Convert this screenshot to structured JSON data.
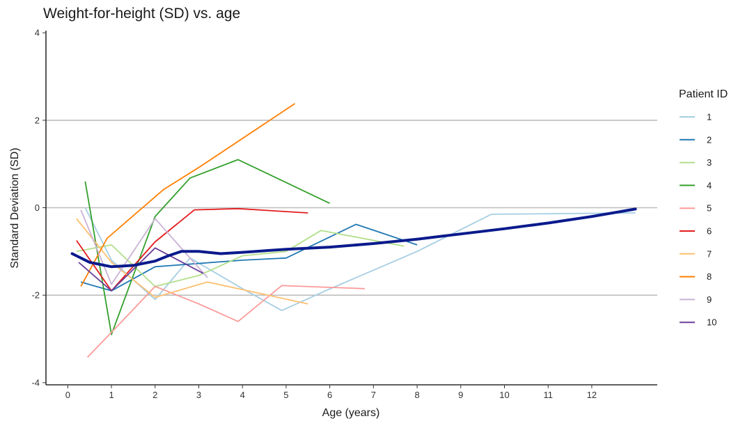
{
  "chart_data": {
    "type": "line",
    "title": "Weight-for-height (SD) vs. age",
    "xlabel": "Age (years)",
    "ylabel": "Standard Deviation (SD)",
    "xlim": [
      -0.5,
      13.5
    ],
    "ylim": [
      -4.05,
      4.05
    ],
    "x_ticks": [
      0,
      1,
      2,
      3,
      4,
      5,
      6,
      7,
      8,
      9,
      10,
      11,
      12
    ],
    "y_ticks": [
      -4,
      -2,
      0,
      2,
      4
    ],
    "reference_lines": [
      -2,
      0,
      2
    ],
    "reference_line_color": "#bdbdbd",
    "legend_title": "Patient ID",
    "legend_position": "right",
    "series": [
      {
        "name": "1",
        "color": "#a6cee3",
        "x": [
          0.4,
          1.0,
          2.0,
          2.8,
          4.0,
          4.9,
          5.9,
          8.0,
          9.7,
          13.0
        ],
        "y": [
          0.0,
          -1.2,
          -2.1,
          -1.15,
          -1.85,
          -2.35,
          -1.9,
          -1.0,
          -0.15,
          -0.12
        ]
      },
      {
        "name": "2",
        "color": "#1f78b4",
        "x": [
          0.3,
          1.0,
          2.0,
          4.0,
          5.0,
          6.6,
          8.0
        ],
        "y": [
          -1.7,
          -1.9,
          -1.35,
          -1.2,
          -1.15,
          -0.38,
          -0.85
        ]
      },
      {
        "name": "3",
        "color": "#b2df8a",
        "x": [
          0.2,
          1.0,
          2.0,
          3.0,
          4.0,
          5.0,
          5.8,
          7.7
        ],
        "y": [
          -1.0,
          -0.85,
          -1.8,
          -1.55,
          -1.1,
          -1.0,
          -0.52,
          -0.88
        ]
      },
      {
        "name": "4",
        "color": "#33a02c",
        "x": [
          0.4,
          1.0,
          2.0,
          2.8,
          3.9,
          6.0
        ],
        "y": [
          0.6,
          -2.9,
          -0.2,
          0.68,
          1.1,
          0.1
        ]
      },
      {
        "name": "5",
        "color": "#fb9a99",
        "x": [
          0.45,
          1.0,
          2.0,
          3.0,
          3.9,
          4.9,
          6.8
        ],
        "y": [
          -3.42,
          -2.85,
          -1.8,
          -2.2,
          -2.6,
          -1.78,
          -1.85
        ]
      },
      {
        "name": "6",
        "color": "#e31a1c",
        "x": [
          0.2,
          1.0,
          2.0,
          2.9,
          3.9,
          5.5
        ],
        "y": [
          -0.75,
          -1.9,
          -0.78,
          -0.05,
          -0.02,
          -0.12
        ]
      },
      {
        "name": "7",
        "color": "#fdbf6f",
        "x": [
          0.2,
          1.0,
          2.0,
          3.2,
          5.5
        ],
        "y": [
          -0.25,
          -1.25,
          -2.05,
          -1.7,
          -2.2
        ]
      },
      {
        "name": "8",
        "color": "#ff7f00",
        "x": [
          0.3,
          0.9,
          2.2,
          3.0,
          5.2
        ],
        "y": [
          -1.8,
          -0.7,
          0.42,
          0.92,
          2.38
        ]
      },
      {
        "name": "9",
        "color": "#cab2d6",
        "x": [
          0.3,
          1.0,
          2.0,
          3.2
        ],
        "y": [
          -0.05,
          -1.75,
          -0.25,
          -1.6
        ]
      },
      {
        "name": "10",
        "color": "#6a3d9a",
        "x": [
          0.25,
          1.0,
          2.0,
          3.1
        ],
        "y": [
          -1.25,
          -1.9,
          -0.92,
          -1.5
        ]
      }
    ],
    "trend": {
      "color": "#0a1a8c",
      "x": [
        0.1,
        0.5,
        1.0,
        1.5,
        2.0,
        2.3,
        2.6,
        3.0,
        3.5,
        4.0,
        5.0,
        6.0,
        7.0,
        8.0,
        9.0,
        10.0,
        11.0,
        12.0,
        13.0
      ],
      "y": [
        -1.05,
        -1.25,
        -1.35,
        -1.32,
        -1.22,
        -1.1,
        -1.0,
        -1.0,
        -1.05,
        -1.02,
        -0.95,
        -0.9,
        -0.82,
        -0.72,
        -0.6,
        -0.48,
        -0.35,
        -0.2,
        -0.03
      ]
    }
  }
}
